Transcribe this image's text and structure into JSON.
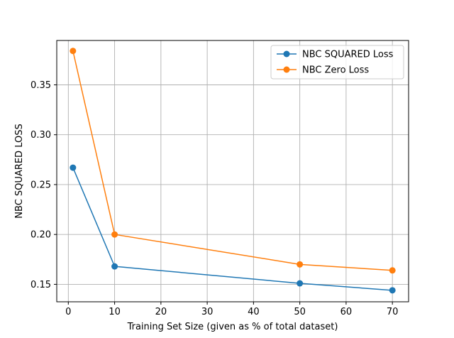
{
  "chart_data": {
    "type": "line",
    "title": "",
    "xlabel": "Training Set Size (given as % of total dataset)",
    "ylabel": "NBC SQUARED LOSS",
    "xlim": [
      -2.5,
      73.5
    ],
    "ylim": [
      0.1325,
      0.3945
    ],
    "xticks": [
      0,
      10,
      20,
      30,
      40,
      50,
      60,
      70
    ],
    "yticks": [
      0.15,
      0.2,
      0.25,
      0.3,
      0.35
    ],
    "xtick_labels": [
      "0",
      "10",
      "20",
      "30",
      "40",
      "50",
      "60",
      "70"
    ],
    "ytick_labels": [
      "0.15",
      "0.20",
      "0.25",
      "0.30",
      "0.35"
    ],
    "grid": true,
    "legend_position": "top-right",
    "x": [
      1,
      10,
      50,
      70
    ],
    "series": [
      {
        "name": "NBC SQUARED Loss",
        "color": "#1f77b4",
        "values": [
          0.267,
          0.168,
          0.151,
          0.144
        ]
      },
      {
        "name": "NBC Zero Loss",
        "color": "#ff7f0e",
        "values": [
          0.384,
          0.2,
          0.17,
          0.164
        ]
      }
    ]
  }
}
